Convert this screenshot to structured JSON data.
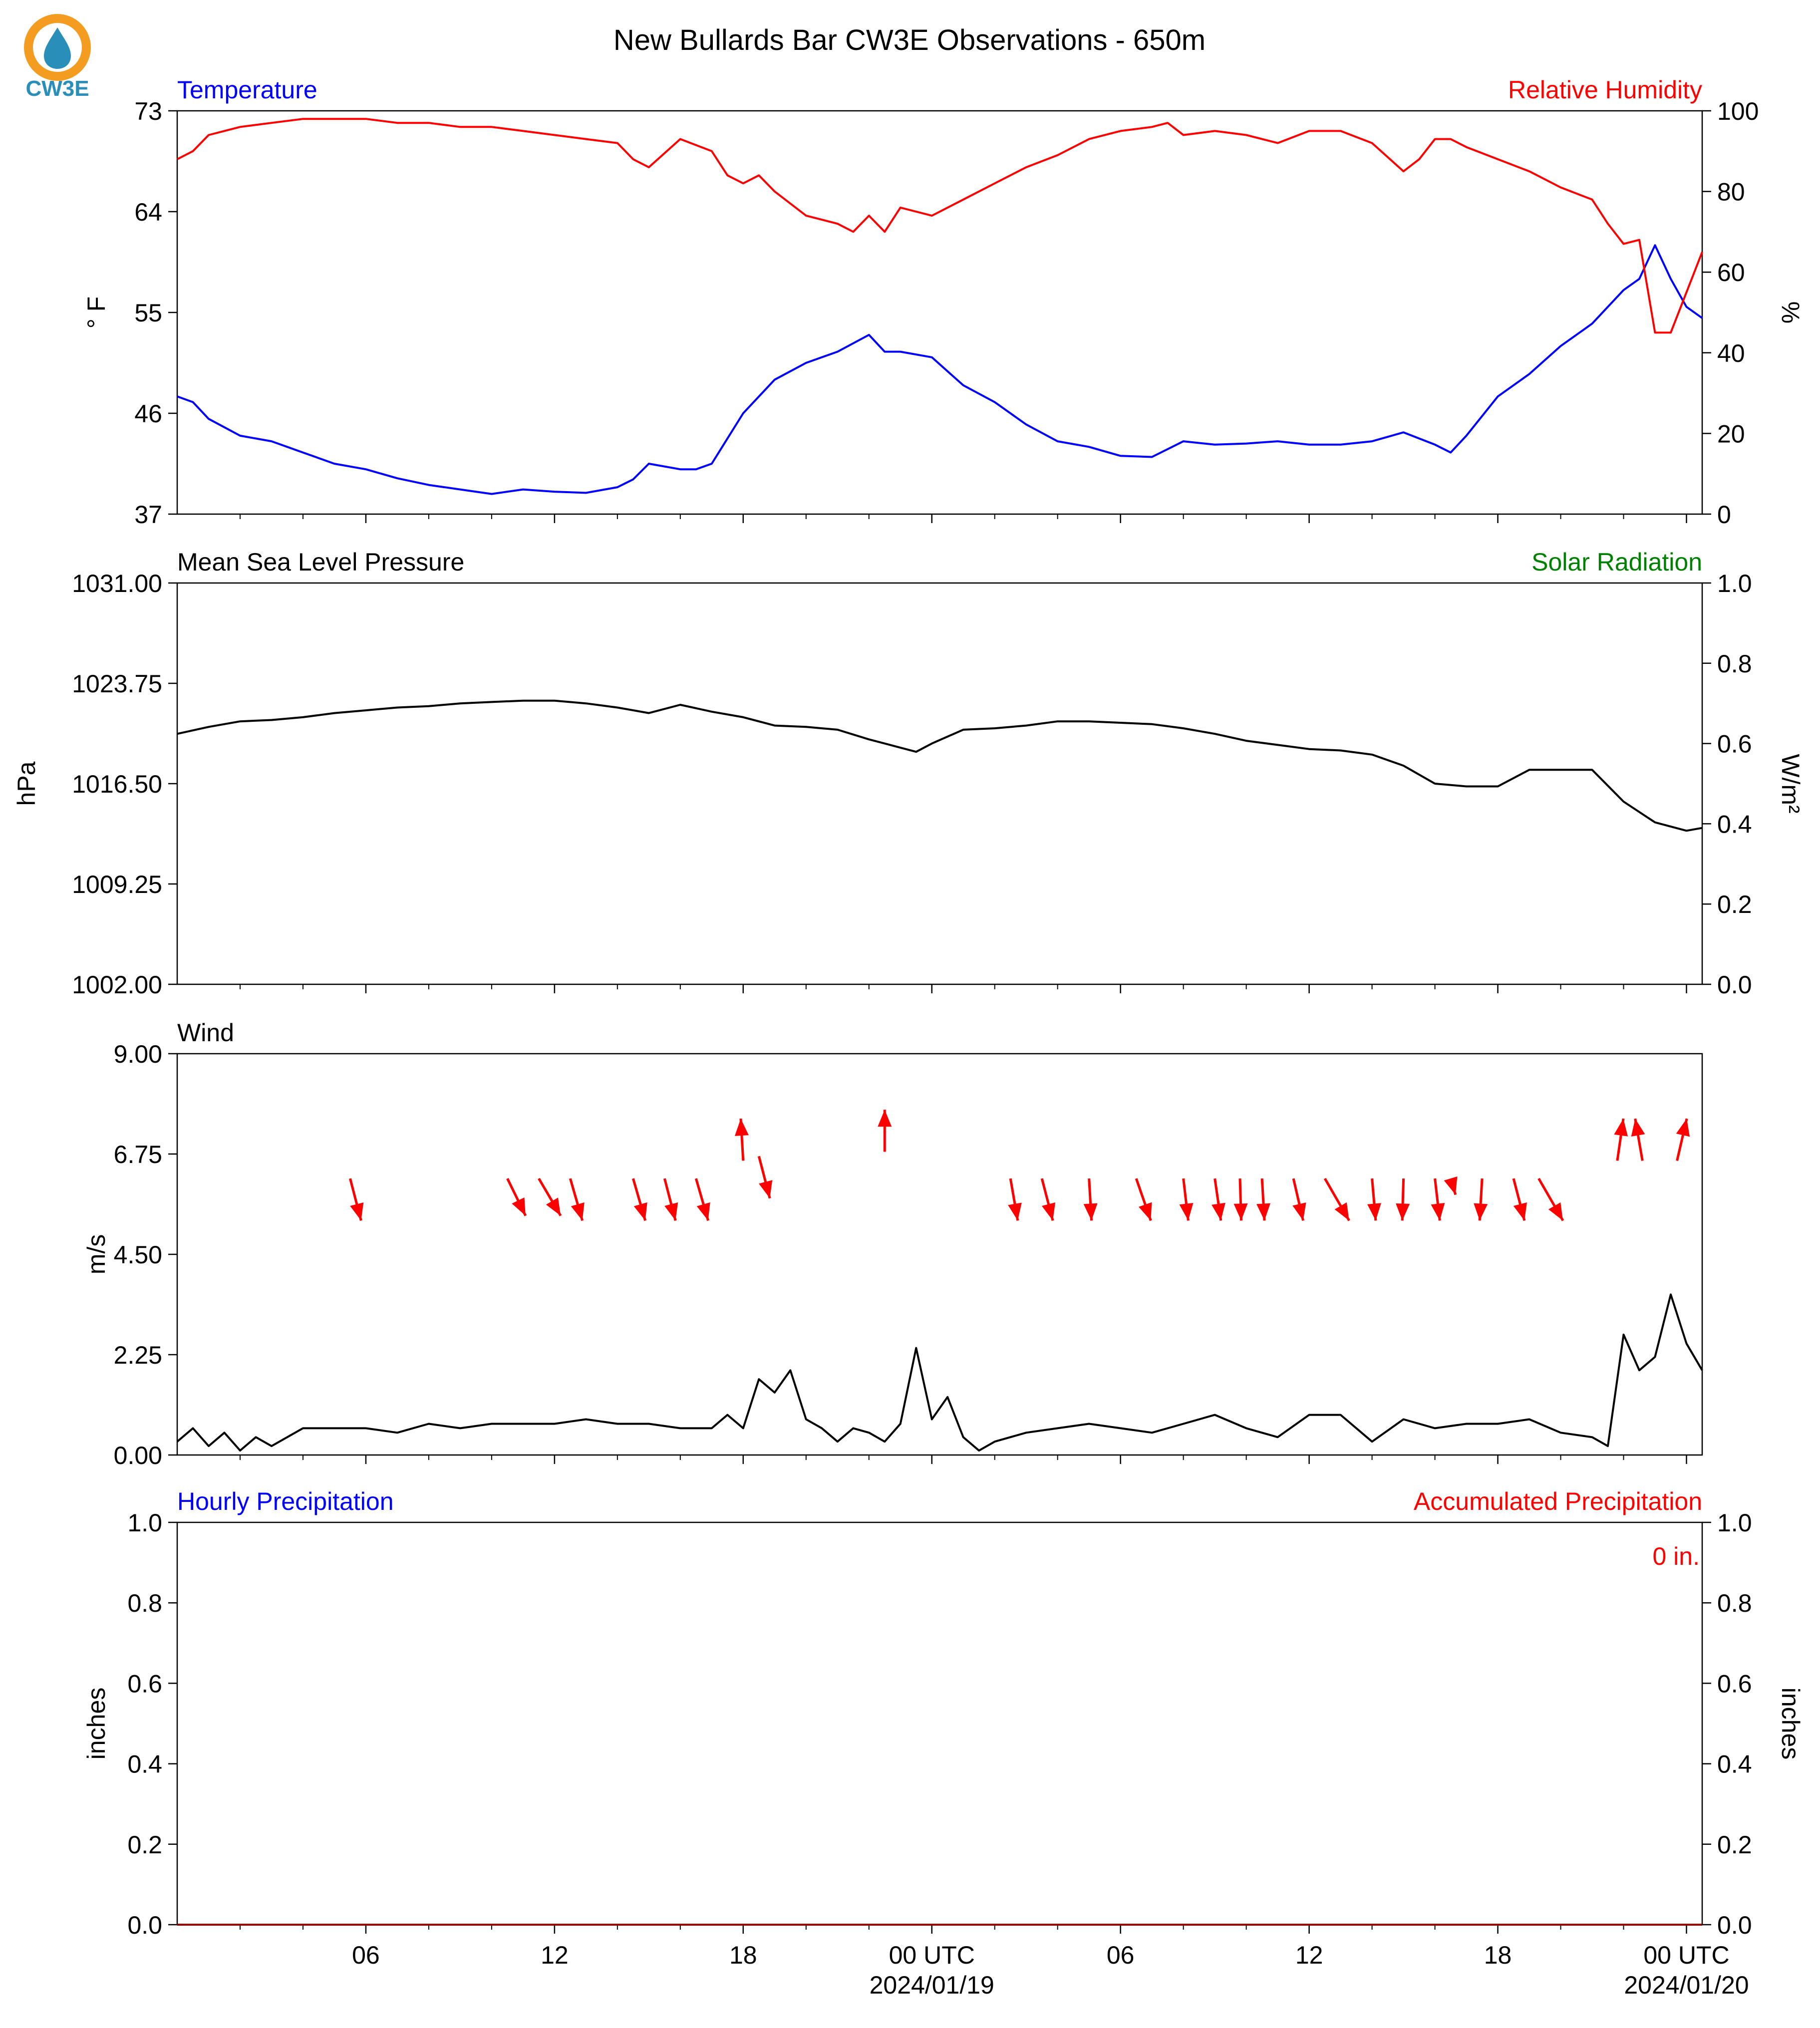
{
  "header": {
    "title": "New Bullards Bar CW3E Observations - 650m",
    "logo_text": "CW3E",
    "logo_colors": {
      "ring": "#f39c1f",
      "drop": "#2a8fb8",
      "text": "#2a8fb8"
    }
  },
  "time_axis": {
    "hours_span": 48,
    "ticks": [
      {
        "hour": 6,
        "label": "06",
        "date": ""
      },
      {
        "hour": 12,
        "label": "12",
        "date": ""
      },
      {
        "hour": 18,
        "label": "18",
        "date": ""
      },
      {
        "hour": 24,
        "label": "00 UTC",
        "date": "2024/01/19"
      },
      {
        "hour": 30,
        "label": "06",
        "date": ""
      },
      {
        "hour": 36,
        "label": "12",
        "date": ""
      },
      {
        "hour": 42,
        "label": "18",
        "date": ""
      },
      {
        "hour": 48,
        "label": "00 UTC",
        "date": "2024/01/20"
      }
    ]
  },
  "chart_data": [
    {
      "type": "line",
      "panel": "temperature-humidity",
      "left_title": "Temperature",
      "right_title": "Relative Humidity",
      "left_title_color": "#0000ff",
      "right_title_color": "#ff0000",
      "ylabel_left": "° F",
      "ylabel_right": "%",
      "ylim_left": [
        37,
        73
      ],
      "ylim_right": [
        0,
        100
      ],
      "yticks_left": [
        "73",
        "64",
        "55",
        "46",
        "37"
      ],
      "yticks_right": [
        "100",
        "80",
        "60",
        "40",
        "20",
        "0"
      ],
      "series": [
        {
          "name": "Temperature",
          "color": "#0000ff",
          "axis": "left",
          "x": [
            0,
            0.5,
            1,
            2,
            3,
            4,
            5,
            6,
            7,
            8,
            9,
            10,
            11,
            12,
            13,
            14,
            14.5,
            15,
            16,
            16.5,
            17,
            18,
            19,
            20,
            21,
            22,
            22.5,
            23,
            24,
            25,
            26,
            27,
            28,
            29,
            30,
            31,
            32,
            33,
            34,
            35,
            36,
            37,
            38,
            39,
            40,
            40.5,
            41,
            42,
            43,
            44,
            45,
            46,
            46.5,
            47,
            47.5,
            48,
            48.5
          ],
          "values": [
            47.5,
            47,
            45.5,
            44,
            43.5,
            42.5,
            41.5,
            41,
            40.2,
            39.6,
            39.2,
            38.8,
            39.2,
            39,
            38.9,
            39.4,
            40.1,
            41.5,
            41,
            41,
            41.5,
            46,
            49,
            50.5,
            51.5,
            53,
            51.5,
            51.5,
            51,
            48.5,
            47,
            45,
            43.5,
            43,
            42.2,
            42.1,
            43.5,
            43.2,
            43.3,
            43.5,
            43.2,
            43.2,
            43.5,
            44.3,
            43.2,
            42.5,
            44,
            47.5,
            49.5,
            52,
            54,
            57,
            58,
            61,
            58,
            55.5,
            54.5
          ]
        },
        {
          "name": "Relative Humidity",
          "color": "#ff0000",
          "axis": "right",
          "x": [
            0,
            0.5,
            1,
            2,
            3,
            4,
            5,
            6,
            7,
            8,
            9,
            10,
            11,
            12,
            13,
            14,
            14.5,
            15,
            16,
            17,
            17.5,
            18,
            18.5,
            19,
            20,
            21,
            21.5,
            22,
            22.5,
            23,
            23.5,
            24,
            25,
            26,
            27,
            28,
            29,
            30,
            31,
            31.5,
            32,
            33,
            34,
            35,
            36,
            37,
            38,
            39,
            39.5,
            40,
            40.5,
            41,
            42,
            43,
            44,
            45,
            45.5,
            46,
            46.5,
            47,
            47.5,
            48,
            48.5
          ],
          "values": [
            88,
            90,
            94,
            96,
            97,
            98,
            98,
            98,
            97,
            97,
            96,
            96,
            95,
            94,
            93,
            92,
            88,
            86,
            93,
            90,
            84,
            82,
            84,
            80,
            74,
            72,
            70,
            74,
            70,
            76,
            75,
            74,
            78,
            82,
            86,
            89,
            93,
            95,
            96,
            97,
            94,
            95,
            94,
            92,
            95,
            95,
            92,
            85,
            88,
            93,
            93,
            91,
            88,
            85,
            81,
            78,
            72,
            67,
            68,
            45,
            45,
            55,
            65
          ]
        }
      ]
    },
    {
      "type": "line",
      "panel": "pressure-solar",
      "left_title": "Mean Sea Level Pressure",
      "right_title": "Solar Radiation",
      "left_title_color": "#000000",
      "right_title_color": "#008000",
      "ylabel_left": "hPa",
      "ylabel_right": "W/m²",
      "ylim_left": [
        1002,
        1031
      ],
      "ylim_right": [
        0,
        1
      ],
      "yticks_left": [
        "1031.00",
        "1023.75",
        "1016.50",
        "1009.25",
        "1002.00"
      ],
      "yticks_right": [
        "1.0",
        "0.8",
        "0.6",
        "0.4",
        "0.2",
        "0.0"
      ],
      "series": [
        {
          "name": "Mean Sea Level Pressure",
          "color": "#000000",
          "axis": "left",
          "x": [
            0,
            1,
            2,
            3,
            4,
            5,
            6,
            7,
            8,
            9,
            10,
            11,
            12,
            13,
            14,
            15,
            16,
            17,
            18,
            19,
            20,
            21,
            22,
            23,
            23.5,
            24,
            25,
            26,
            27,
            28,
            29,
            30,
            31,
            32,
            33,
            34,
            35,
            36,
            37,
            38,
            39,
            40,
            41,
            42,
            43,
            44,
            45,
            46,
            47,
            48,
            48.5
          ],
          "values": [
            1020.1,
            1020.6,
            1021.0,
            1021.1,
            1021.3,
            1021.6,
            1021.8,
            1022.0,
            1022.1,
            1022.3,
            1022.4,
            1022.5,
            1022.5,
            1022.3,
            1022.0,
            1021.6,
            1022.2,
            1021.7,
            1021.3,
            1020.7,
            1020.6,
            1020.4,
            1019.7,
            1019.1,
            1018.8,
            1019.4,
            1020.4,
            1020.5,
            1020.7,
            1021.0,
            1021.0,
            1020.9,
            1020.8,
            1020.5,
            1020.1,
            1019.6,
            1019.3,
            1019.0,
            1018.9,
            1018.6,
            1017.8,
            1016.5,
            1016.3,
            1016.3,
            1017.5,
            1017.5,
            1017.5,
            1015.2,
            1013.7,
            1013.1,
            1013.3
          ]
        }
      ]
    },
    {
      "type": "line",
      "panel": "wind",
      "left_title": "Wind",
      "left_title_color": "#000000",
      "ylabel_left": "m/s",
      "ylim_left": [
        0,
        9
      ],
      "yticks_left": [
        "9.00",
        "6.75",
        "4.50",
        "2.25",
        "0.00"
      ],
      "series": [
        {
          "name": "Wind",
          "color": "#000000",
          "axis": "left",
          "x": [
            0,
            0.5,
            1,
            1.5,
            2,
            2.5,
            3,
            4,
            5,
            6,
            7,
            8,
            9,
            10,
            11,
            12,
            13,
            14,
            15,
            16,
            17,
            17.5,
            18,
            18.5,
            19,
            19.5,
            20,
            20.5,
            21,
            21.5,
            22,
            22.5,
            23,
            23.5,
            24,
            24.5,
            25,
            25.5,
            26,
            27,
            28,
            29,
            30,
            31,
            32,
            33,
            34,
            35,
            36,
            37,
            38,
            39,
            40,
            41,
            42,
            43,
            44,
            45,
            45.5,
            46,
            46.5,
            47,
            47.5,
            48,
            48.5
          ],
          "values": [
            0.3,
            0.6,
            0.2,
            0.5,
            0.1,
            0.4,
            0.2,
            0.6,
            0.6,
            0.6,
            0.5,
            0.7,
            0.6,
            0.7,
            0.7,
            0.7,
            0.8,
            0.7,
            0.7,
            0.6,
            0.6,
            0.9,
            0.6,
            1.7,
            1.4,
            1.9,
            0.8,
            0.6,
            0.3,
            0.6,
            0.5,
            0.3,
            0.7,
            2.4,
            0.8,
            1.3,
            0.4,
            0.1,
            0.3,
            0.5,
            0.6,
            0.7,
            0.6,
            0.5,
            0.7,
            0.9,
            0.6,
            0.4,
            0.9,
            0.9,
            0.3,
            0.8,
            0.6,
            0.7,
            0.7,
            0.8,
            0.5,
            0.4,
            0.2,
            2.7,
            1.9,
            2.2,
            3.6,
            2.5,
            1.9
          ]
        }
      ],
      "wind_vectors_hours": [
        5.5,
        10.5,
        11.5,
        12.5,
        14.5,
        15.5,
        16.5,
        18.0,
        18.5,
        22.5,
        26.5,
        27.5,
        29.0,
        30.5,
        32.0,
        33.0,
        33.8,
        34.5,
        35.5,
        36.5,
        38.0,
        39.0,
        40.0,
        40.5,
        41.5,
        42.5,
        43.3,
        45.8,
        46.6,
        47.7
      ],
      "wind_vectors_u": [
        0.9,
        1.5,
        1.8,
        1.0,
        1.0,
        0.9,
        1.0,
        -0.2,
        0.9,
        0.0,
        0.6,
        0.9,
        0.2,
        1.2,
        0.4,
        0.5,
        0.1,
        0.2,
        0.8,
        2.0,
        0.3,
        -0.1,
        0.4,
        0.4,
        -0.2,
        0.9,
        2.0,
        0.5,
        -0.6,
        0.8
      ],
      "wind_vectors_v": [
        -2.6,
        -2.3,
        -2.3,
        -2.6,
        -2.6,
        -2.6,
        -2.6,
        2.6,
        -2.6,
        2.6,
        -2.6,
        -2.6,
        -2.6,
        -2.6,
        -2.6,
        -2.6,
        -2.6,
        -2.6,
        -2.6,
        -2.6,
        -2.6,
        -2.6,
        -2.6,
        -1.0,
        -2.6,
        -2.6,
        -2.6,
        2.6,
        2.6,
        2.6
      ],
      "wind_vectors_base": [
        6.2,
        6.2,
        6.2,
        6.2,
        6.2,
        6.2,
        6.2,
        6.6,
        6.7,
        6.8,
        6.2,
        6.2,
        6.2,
        6.2,
        6.2,
        6.2,
        6.2,
        6.2,
        6.2,
        6.2,
        6.2,
        6.2,
        6.2,
        6.2,
        6.2,
        6.2,
        6.2,
        6.6,
        6.6,
        6.6
      ],
      "wind_vectors_color": "#ff0000"
    },
    {
      "type": "line",
      "panel": "precipitation",
      "left_title": "Hourly Precipitation",
      "right_title": "Accumulated Precipitation",
      "left_title_color": "#0000ff",
      "right_title_color": "#ff0000",
      "ylabel_left": "inches",
      "ylabel_right": "inches",
      "ylim_left": [
        0,
        1
      ],
      "ylim_right": [
        0,
        1
      ],
      "yticks_left": [
        "1.0",
        "0.8",
        "0.6",
        "0.4",
        "0.2",
        "0.0"
      ],
      "yticks_right": [
        "1.0",
        "0.8",
        "0.6",
        "0.4",
        "0.2",
        "0.0"
      ],
      "annotation": "0 in.",
      "annotation_color": "#ff0000",
      "series": [
        {
          "name": "Accumulated Precipitation",
          "color": "#8b0000",
          "axis": "right",
          "x": [
            0,
            48.5
          ],
          "values": [
            0,
            0
          ]
        }
      ]
    }
  ]
}
